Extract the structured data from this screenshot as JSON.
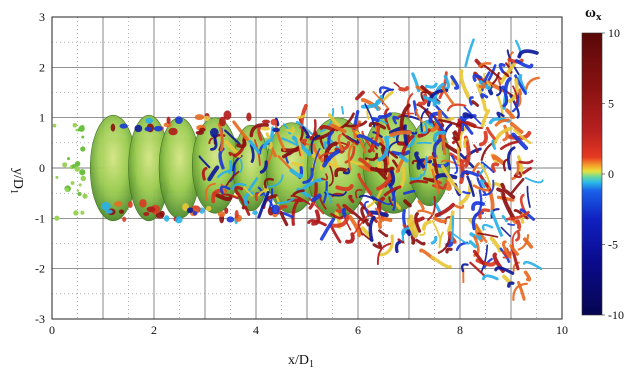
{
  "chart_data": {
    "type": "heatmap",
    "description_free": true,
    "xlabel": "x/D",
    "xlabel_sub": "1",
    "ylabel": "y/D",
    "ylabel_sub": "1",
    "xlim": [
      0,
      10
    ],
    "ylim": [
      -3,
      3
    ],
    "x_ticks": [
      "0",
      "2",
      "4",
      "6",
      "8",
      "10"
    ],
    "y_ticks": [
      "-3",
      "-2",
      "-1",
      "0",
      "1",
      "2",
      "3"
    ],
    "grid": true,
    "minor_grid": true,
    "colorbar": {
      "title": "ω",
      "title_sub": "x",
      "range": [
        -10,
        10
      ],
      "ticks": [
        "10",
        "5",
        "0",
        "-5",
        "-10"
      ],
      "colors": [
        "#5a0a0a",
        "#8a1a1a",
        "#c02a22",
        "#e8442a",
        "#f0a030",
        "#e8e040",
        "#4ad0a0",
        "#2aa0e0",
        "#1a5ae0",
        "#1020b0",
        "#0a0a70"
      ]
    }
  }
}
